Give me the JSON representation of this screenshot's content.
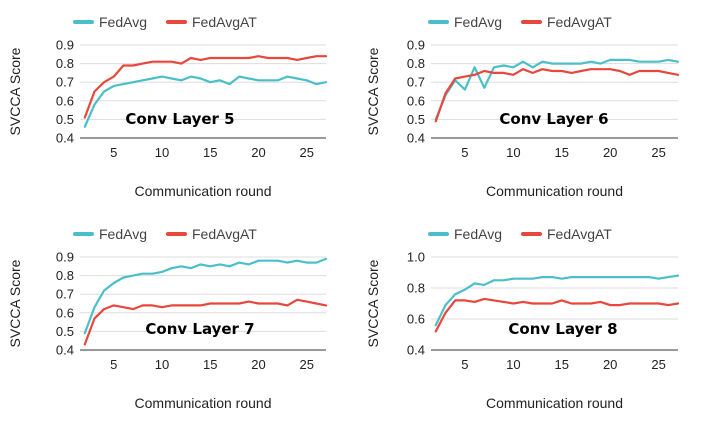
{
  "chart_data": [
    {
      "type": "line",
      "annotation": "Conv Layer 5",
      "xlabel": "Communication round",
      "ylabel": "SVCCA Score",
      "xlim": [
        1.5,
        27
      ],
      "ylim": [
        0.4,
        0.9
      ],
      "xticks": [
        5,
        10,
        15,
        20,
        25
      ],
      "yticks": [
        0.4,
        0.5,
        0.6,
        0.7,
        0.8,
        0.9
      ],
      "ytick_labels": [
        "0.4",
        "0.5",
        "0.6",
        "0.7",
        "0.8",
        "0.9"
      ],
      "grid": true,
      "legend_position": "top",
      "x": [
        2,
        3,
        4,
        5,
        6,
        7,
        8,
        9,
        10,
        11,
        12,
        13,
        14,
        15,
        16,
        17,
        18,
        19,
        20,
        21,
        22,
        23,
        24,
        25,
        26,
        27
      ],
      "series": [
        {
          "name": "FedAvg",
          "color": "#4bbfc9",
          "values": [
            0.46,
            0.58,
            0.65,
            0.68,
            0.69,
            0.7,
            0.71,
            0.72,
            0.73,
            0.72,
            0.71,
            0.73,
            0.72,
            0.7,
            0.71,
            0.69,
            0.73,
            0.72,
            0.71,
            0.71,
            0.71,
            0.73,
            0.72,
            0.71,
            0.69,
            0.7
          ]
        },
        {
          "name": "FedAvgAT",
          "color": "#e8473c",
          "values": [
            0.51,
            0.65,
            0.7,
            0.73,
            0.79,
            0.79,
            0.8,
            0.81,
            0.81,
            0.81,
            0.8,
            0.83,
            0.82,
            0.83,
            0.83,
            0.83,
            0.83,
            0.83,
            0.84,
            0.83,
            0.83,
            0.83,
            0.82,
            0.83,
            0.84,
            0.84
          ]
        }
      ]
    },
    {
      "type": "line",
      "annotation": "Conv Layer 6",
      "xlabel": "Communication round",
      "ylabel": "SVCCA Score",
      "xlim": [
        1.5,
        27
      ],
      "ylim": [
        0.4,
        0.9
      ],
      "xticks": [
        5,
        10,
        15,
        20,
        25
      ],
      "yticks": [
        0.4,
        0.5,
        0.6,
        0.7,
        0.8,
        0.9
      ],
      "ytick_labels": [
        "0.4",
        "0.5",
        "0.6",
        "0.7",
        "0.8",
        "0.9"
      ],
      "grid": true,
      "legend_position": "top",
      "x": [
        2,
        3,
        4,
        5,
        6,
        7,
        8,
        9,
        10,
        11,
        12,
        13,
        14,
        15,
        16,
        17,
        18,
        19,
        20,
        21,
        22,
        23,
        24,
        25,
        26,
        27
      ],
      "series": [
        {
          "name": "FedAvg",
          "color": "#4bbfc9",
          "values": [
            0.5,
            0.63,
            0.71,
            0.66,
            0.78,
            0.67,
            0.78,
            0.79,
            0.78,
            0.81,
            0.78,
            0.81,
            0.8,
            0.8,
            0.8,
            0.8,
            0.81,
            0.8,
            0.82,
            0.82,
            0.82,
            0.81,
            0.81,
            0.81,
            0.82,
            0.81
          ]
        },
        {
          "name": "FedAvgAT",
          "color": "#e8473c",
          "values": [
            0.49,
            0.64,
            0.72,
            0.73,
            0.74,
            0.76,
            0.75,
            0.75,
            0.74,
            0.77,
            0.75,
            0.77,
            0.76,
            0.76,
            0.75,
            0.76,
            0.77,
            0.77,
            0.77,
            0.76,
            0.74,
            0.76,
            0.76,
            0.76,
            0.75,
            0.74
          ]
        }
      ]
    },
    {
      "type": "line",
      "annotation": "Conv Layer 7",
      "xlabel": "Communication round",
      "ylabel": "SVCCA Score",
      "xlim": [
        1.5,
        27
      ],
      "ylim": [
        0.4,
        0.9
      ],
      "xticks": [
        5,
        10,
        15,
        20,
        25
      ],
      "yticks": [
        0.4,
        0.5,
        0.6,
        0.7,
        0.8,
        0.9
      ],
      "ytick_labels": [
        "0.4",
        "0.5",
        "0.6",
        "0.7",
        "0.8",
        "0.9"
      ],
      "grid": true,
      "legend_position": "top",
      "x": [
        2,
        3,
        4,
        5,
        6,
        7,
        8,
        9,
        10,
        11,
        12,
        13,
        14,
        15,
        16,
        17,
        18,
        19,
        20,
        21,
        22,
        23,
        24,
        25,
        26,
        27
      ],
      "series": [
        {
          "name": "FedAvg",
          "color": "#4bbfc9",
          "values": [
            0.49,
            0.63,
            0.72,
            0.76,
            0.79,
            0.8,
            0.81,
            0.81,
            0.82,
            0.84,
            0.85,
            0.84,
            0.86,
            0.85,
            0.86,
            0.85,
            0.87,
            0.86,
            0.88,
            0.88,
            0.88,
            0.87,
            0.88,
            0.87,
            0.87,
            0.89
          ]
        },
        {
          "name": "FedAvgAT",
          "color": "#e8473c",
          "values": [
            0.43,
            0.57,
            0.62,
            0.64,
            0.63,
            0.62,
            0.64,
            0.64,
            0.63,
            0.64,
            0.64,
            0.64,
            0.64,
            0.65,
            0.65,
            0.65,
            0.65,
            0.66,
            0.65,
            0.65,
            0.65,
            0.64,
            0.67,
            0.66,
            0.65,
            0.64
          ]
        }
      ]
    },
    {
      "type": "line",
      "annotation": "Conv Layer 8",
      "xlabel": "Communication round",
      "ylabel": "SVCCA Score",
      "xlim": [
        1.5,
        27
      ],
      "ylim": [
        0.4,
        1.0
      ],
      "xticks": [
        5,
        10,
        15,
        20,
        25
      ],
      "yticks": [
        0.4,
        0.6,
        0.8,
        1.0
      ],
      "ytick_labels": [
        "0.4",
        "0.6",
        "0.8",
        "1.0"
      ],
      "grid": true,
      "legend_position": "top",
      "x": [
        2,
        3,
        4,
        5,
        6,
        7,
        8,
        9,
        10,
        11,
        12,
        13,
        14,
        15,
        16,
        17,
        18,
        19,
        20,
        21,
        22,
        23,
        24,
        25,
        26,
        27
      ],
      "series": [
        {
          "name": "FedAvg",
          "color": "#4bbfc9",
          "values": [
            0.56,
            0.69,
            0.76,
            0.79,
            0.83,
            0.82,
            0.85,
            0.85,
            0.86,
            0.86,
            0.86,
            0.87,
            0.87,
            0.86,
            0.87,
            0.87,
            0.87,
            0.87,
            0.87,
            0.87,
            0.87,
            0.87,
            0.87,
            0.86,
            0.87,
            0.88
          ]
        },
        {
          "name": "FedAvgAT",
          "color": "#e8473c",
          "values": [
            0.52,
            0.64,
            0.72,
            0.72,
            0.71,
            0.73,
            0.72,
            0.71,
            0.7,
            0.71,
            0.7,
            0.7,
            0.7,
            0.72,
            0.7,
            0.7,
            0.7,
            0.71,
            0.69,
            0.69,
            0.7,
            0.7,
            0.7,
            0.7,
            0.69,
            0.7
          ]
        }
      ]
    }
  ]
}
